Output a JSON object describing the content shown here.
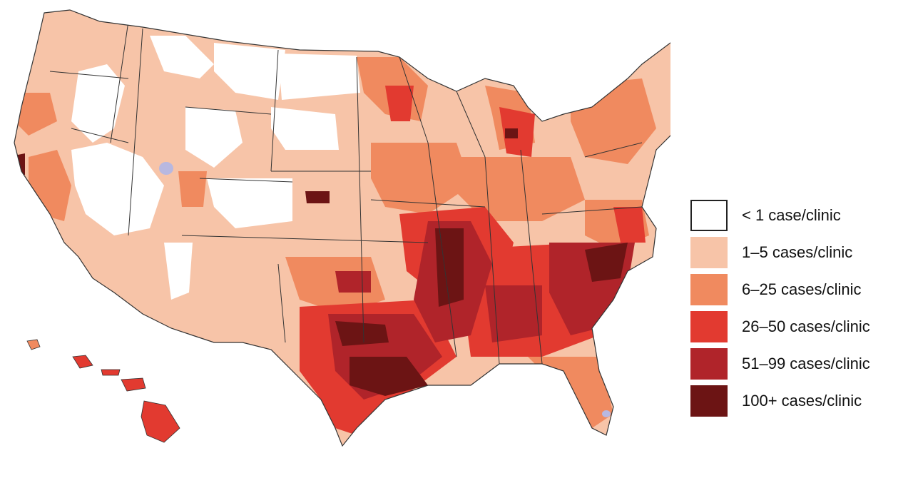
{
  "legend": {
    "items": [
      {
        "label": "< 1 case/clinic",
        "color": "#ffffff",
        "border": "#222222"
      },
      {
        "label": "1–5 cases/clinic",
        "color": "#f7c4a8",
        "border": "#f7c4a8"
      },
      {
        "label": "6–25 cases/clinic",
        "color": "#f08a5f",
        "border": "#f08a5f"
      },
      {
        "label": "26–50 cases/clinic",
        "color": "#e23a30",
        "border": "#e23a30"
      },
      {
        "label": "51–99 cases/clinic",
        "color": "#b0242a",
        "border": "#b0242a"
      },
      {
        "label": "100+ cases/clinic",
        "color": "#6c1414",
        "border": "#6c1414"
      }
    ]
  },
  "map": {
    "base_color": "#f7c4a8",
    "outline_color": "#333333",
    "water_body_color": "#b8b8e0"
  }
}
